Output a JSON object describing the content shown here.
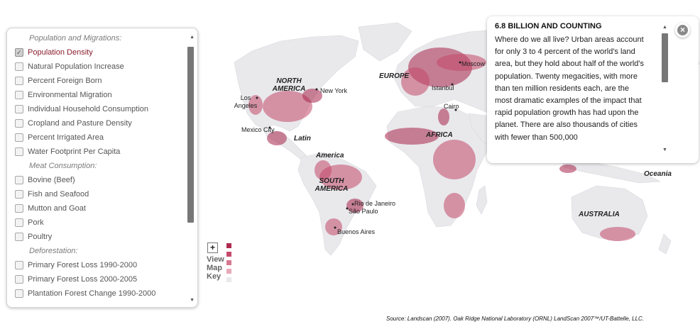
{
  "layers": {
    "sections": [
      {
        "heading": "Population and Migrations:",
        "items": [
          {
            "label": "Population Density",
            "checked": true
          },
          {
            "label": "Natural Population Increase",
            "checked": false
          },
          {
            "label": "Percent Foreign Born",
            "checked": false
          },
          {
            "label": "Environmental Migration",
            "checked": false
          },
          {
            "label": "Individual Household Consumption",
            "checked": false
          },
          {
            "label": "Cropland and Pasture Density",
            "checked": false
          },
          {
            "label": "Percent Irrigated Area",
            "checked": false
          },
          {
            "label": "Water Footprint Per Capita",
            "checked": false
          }
        ]
      },
      {
        "heading": "Meat Consumption:",
        "items": [
          {
            "label": "Bovine (Beef)",
            "checked": false
          },
          {
            "label": "Fish and Seafood",
            "checked": false
          },
          {
            "label": "Mutton and Goat",
            "checked": false
          },
          {
            "label": "Pork",
            "checked": false
          },
          {
            "label": "Poultry",
            "checked": false
          }
        ]
      },
      {
        "heading": "Deforestation:",
        "items": [
          {
            "label": "Primary Forest Loss 1990-2000",
            "checked": false
          },
          {
            "label": "Primary Forest Loss 2000-2005",
            "checked": false
          },
          {
            "label": "Plantation Forest Change 1990-2000",
            "checked": false
          }
        ]
      }
    ]
  },
  "info": {
    "title": "6.8 BILLION AND COUNTING",
    "body": "Where do we all live? Urban areas account for only 3 to 4 percent of the world's land area, but they hold about half of the world's population. Twenty megacities, with more than ten million residents each, are the most dramatic examples of the impact that rapid population growth has had upon the planet. There are also thousands of cities with fewer than 500,000"
  },
  "map": {
    "regions": {
      "north_america": "NORTH\nAMERICA",
      "europe": "EUROPE",
      "latin": "Latin",
      "america": "America",
      "south_america": "SOUTH\nAMERICA",
      "africa": "AFRICA",
      "oceania": "Oceania",
      "australia": "AUSTRALIA"
    },
    "cities": {
      "new_york": "New York",
      "los_angeles": "Los\nAngeles",
      "mexico_city": "Mexico City",
      "rio": "Rio de Janeiro",
      "sao_paulo": "São Paulo",
      "buenos_aires": "Buenos Aires",
      "istanbul": "Istanbul",
      "cairo": "Cairo",
      "moscow": "Moscow"
    },
    "density_color": "#b5365a",
    "land_color": "#e9e9ec"
  },
  "key": {
    "plus": "+",
    "label": "View\nMap\nKey",
    "swatches": [
      "#b02a4f",
      "#c54b6c",
      "#d77891",
      "#e7a9b8",
      "#e9e9ec"
    ]
  },
  "source": "Source: Landscan (2007). Oak Ridge National Laboratory (ORNL) LandScan 2007™/UT-Battelle, LLC."
}
